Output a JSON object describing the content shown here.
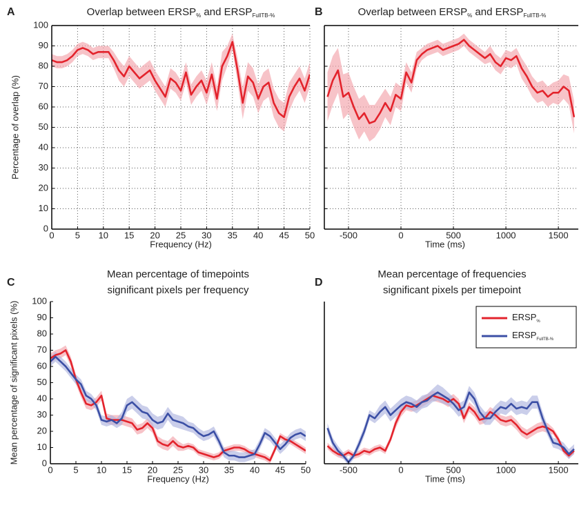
{
  "chart_data": [
    {
      "type": "line",
      "panel_label": "A",
      "title_parts": [
        {
          "text": "Overlap between ERSP",
          "sub": false
        },
        {
          "text": "%",
          "sub": true
        },
        {
          "text": " and ERSP",
          "sub": false
        },
        {
          "text": "FullTB-%",
          "sub": true
        }
      ],
      "xlabel": "Frequency (Hz)",
      "ylabel": "Percentage of overlap (%)",
      "xlim": [
        0,
        50
      ],
      "ylim": [
        0,
        100
      ],
      "xticks": [
        0,
        5,
        10,
        15,
        20,
        25,
        30,
        35,
        40,
        45,
        50
      ],
      "yticks": [
        0,
        10,
        20,
        30,
        40,
        50,
        60,
        70,
        80,
        90,
        100
      ],
      "show_yticklabels": true,
      "grid": true,
      "frame": true,
      "x": [
        0,
        1,
        2,
        3,
        4,
        5,
        6,
        7,
        8,
        9,
        10,
        11,
        12,
        13,
        14,
        15,
        16,
        17,
        18,
        19,
        20,
        21,
        22,
        23,
        24,
        25,
        26,
        27,
        28,
        29,
        30,
        31,
        32,
        33,
        34,
        35,
        36,
        37,
        38,
        39,
        40,
        41,
        42,
        43,
        44,
        45,
        46,
        47,
        48,
        49,
        50
      ],
      "series": [
        {
          "color": "#e3232c",
          "band_color": "#f2a3ab",
          "values": [
            83,
            82,
            82,
            83,
            85,
            88,
            89,
            88,
            86,
            87,
            87,
            87,
            83,
            78,
            75,
            80,
            77,
            74,
            76,
            78,
            73,
            69,
            65,
            74,
            72,
            68,
            77,
            66,
            70,
            73,
            67,
            76,
            64,
            80,
            85,
            92,
            78,
            62,
            75,
            72,
            64,
            70,
            72,
            62,
            57,
            55,
            65,
            70,
            74,
            68,
            76
          ],
          "errors": [
            3,
            3,
            3,
            3,
            3,
            3,
            3,
            3,
            3,
            3,
            3,
            3,
            4,
            5,
            5,
            5,
            5,
            5,
            5,
            5,
            5,
            5,
            5,
            5,
            5,
            5,
            5,
            5,
            5,
            5,
            6,
            6,
            6,
            7,
            5,
            4,
            6,
            8,
            7,
            7,
            7,
            7,
            7,
            7,
            7,
            7,
            7,
            6,
            6,
            6,
            6
          ]
        }
      ]
    },
    {
      "type": "line",
      "panel_label": "B",
      "title_parts": [
        {
          "text": "Overlap between ERSP",
          "sub": false
        },
        {
          "text": "%",
          "sub": true
        },
        {
          "text": " and ERSP",
          "sub": false
        },
        {
          "text": "FullTB-%",
          "sub": true
        }
      ],
      "xlabel": "Time (ms)",
      "xlim": [
        -730,
        1690
      ],
      "ylim": [
        0,
        100
      ],
      "xticks": [
        -500,
        0,
        500,
        1000,
        1500
      ],
      "yticks": [
        0,
        10,
        20,
        30,
        40,
        50,
        60,
        70,
        80,
        90,
        100
      ],
      "show_yticklabels": false,
      "grid": true,
      "frame": true,
      "x": [
        -700,
        -650,
        -600,
        -550,
        -500,
        -450,
        -400,
        -350,
        -300,
        -250,
        -200,
        -150,
        -100,
        -50,
        0,
        50,
        100,
        150,
        200,
        250,
        300,
        350,
        400,
        450,
        500,
        550,
        600,
        650,
        700,
        750,
        800,
        850,
        900,
        950,
        1000,
        1050,
        1100,
        1150,
        1200,
        1250,
        1300,
        1350,
        1400,
        1450,
        1500,
        1550,
        1600,
        1650
      ],
      "series": [
        {
          "color": "#e3232c",
          "band_color": "#f2a3ab",
          "values": [
            65,
            73,
            78,
            65,
            67,
            60,
            54,
            57,
            52,
            53,
            57,
            62,
            58,
            66,
            64,
            77,
            72,
            83,
            86,
            88,
            89,
            90,
            88,
            89,
            90,
            91,
            93,
            90,
            88,
            86,
            84,
            86,
            82,
            80,
            84,
            83,
            85,
            79,
            75,
            70,
            67,
            68,
            65,
            67,
            67,
            70,
            68,
            55
          ],
          "errors": [
            12,
            12,
            11,
            11,
            10,
            10,
            10,
            9,
            9,
            8,
            8,
            7,
            7,
            6,
            6,
            5,
            5,
            4,
            3,
            3,
            3,
            3,
            3,
            3,
            3,
            3,
            3,
            3,
            3,
            3,
            3,
            4,
            4,
            4,
            4,
            4,
            4,
            5,
            5,
            5,
            5,
            5,
            5,
            5,
            6,
            6,
            7,
            8
          ]
        }
      ]
    },
    {
      "type": "line",
      "panel_label": "C",
      "title_lines": [
        "Mean percentage of timepoints",
        "significant pixels per frequency"
      ],
      "xlabel": "Frequency (Hz)",
      "ylabel": "Mean percentage of significant pixels (%)",
      "xlim": [
        0,
        50
      ],
      "ylim": [
        0,
        100
      ],
      "xticks": [
        0,
        5,
        10,
        15,
        20,
        25,
        30,
        35,
        40,
        45,
        50
      ],
      "yticks": [
        0,
        10,
        20,
        30,
        40,
        50,
        60,
        70,
        80,
        90,
        100
      ],
      "show_yticklabels": true,
      "grid": false,
      "frame": false,
      "x": [
        0,
        1,
        2,
        3,
        4,
        5,
        6,
        7,
        8,
        9,
        10,
        11,
        12,
        13,
        14,
        15,
        16,
        17,
        18,
        19,
        20,
        21,
        22,
        23,
        24,
        25,
        26,
        27,
        28,
        29,
        30,
        31,
        32,
        33,
        34,
        35,
        36,
        37,
        38,
        39,
        40,
        41,
        42,
        43,
        44,
        45,
        46,
        47,
        48,
        49,
        50
      ],
      "series": [
        {
          "color": "#e3232c",
          "band_color": "#f2a3ab",
          "values": [
            65,
            67,
            68,
            70,
            63,
            52,
            44,
            37,
            36,
            38,
            42,
            28,
            27,
            27,
            27,
            26,
            25,
            21,
            22,
            25,
            22,
            14,
            12,
            11,
            14,
            11,
            10,
            11,
            10,
            7,
            6,
            5,
            4,
            5,
            8,
            9,
            10,
            10,
            9,
            7,
            6,
            5,
            4,
            2,
            9,
            17,
            15,
            14,
            12,
            10,
            8
          ],
          "errors": [
            3,
            3,
            3,
            3,
            3,
            3,
            3,
            3,
            3,
            3,
            3,
            3,
            3,
            3,
            3,
            3,
            3,
            3,
            3,
            3,
            3,
            3,
            3,
            3,
            3,
            3,
            2,
            2,
            2,
            2,
            2,
            2,
            2,
            2,
            2,
            2,
            2,
            2,
            2,
            2,
            2,
            2,
            2,
            2,
            2,
            2,
            2,
            2,
            2,
            2,
            2
          ]
        },
        {
          "color": "#3b4fa5",
          "band_color": "#aeb3df",
          "values": [
            63,
            66,
            63,
            60,
            56,
            52,
            49,
            42,
            40,
            36,
            27,
            26,
            27,
            25,
            28,
            36,
            38,
            35,
            32,
            31,
            27,
            25,
            26,
            31,
            27,
            26,
            25,
            23,
            22,
            19,
            17,
            18,
            20,
            14,
            7,
            5,
            5,
            4,
            4,
            5,
            6,
            12,
            19,
            17,
            13,
            9,
            12,
            16,
            18,
            19,
            17
          ],
          "errors": [
            3,
            3,
            3,
            3,
            3,
            3,
            3,
            3,
            3,
            3,
            3,
            3,
            3,
            3,
            4,
            4,
            4,
            4,
            4,
            4,
            4,
            4,
            4,
            4,
            4,
            4,
            4,
            3,
            3,
            3,
            3,
            3,
            3,
            3,
            3,
            3,
            3,
            3,
            3,
            3,
            3,
            3,
            3,
            3,
            3,
            3,
            3,
            3,
            3,
            3,
            3
          ]
        }
      ]
    },
    {
      "type": "line",
      "panel_label": "D",
      "title_lines": [
        "Mean percentage of frequencies",
        "significant pixels per timepoint"
      ],
      "xlabel": "Time (ms)",
      "xlim": [
        -730,
        1690
      ],
      "ylim": [
        0,
        100
      ],
      "xticks": [
        -500,
        0,
        500,
        1000,
        1500
      ],
      "grid": false,
      "frame": false,
      "legend": "upper right",
      "x": [
        -700,
        -650,
        -600,
        -550,
        -500,
        -450,
        -400,
        -350,
        -300,
        -250,
        -200,
        -150,
        -100,
        -50,
        0,
        50,
        100,
        150,
        200,
        250,
        300,
        350,
        400,
        450,
        500,
        550,
        600,
        650,
        700,
        750,
        800,
        850,
        900,
        950,
        1000,
        1050,
        1100,
        1150,
        1200,
        1250,
        1300,
        1350,
        1400,
        1450,
        1500,
        1550,
        1600,
        1650
      ],
      "series": [
        {
          "name": "ERSP",
          "name_sub": "%",
          "color": "#e3232c",
          "band_color": "#f2a3ab",
          "values": [
            11,
            8,
            6,
            5,
            7,
            5,
            6,
            8,
            7,
            9,
            10,
            8,
            15,
            25,
            32,
            36,
            35,
            36,
            38,
            40,
            42,
            41,
            40,
            38,
            40,
            37,
            28,
            35,
            32,
            27,
            28,
            32,
            30,
            27,
            26,
            27,
            24,
            20,
            18,
            20,
            22,
            23,
            22,
            20,
            15,
            8,
            5,
            8
          ],
          "errors": [
            2,
            2,
            2,
            2,
            2,
            2,
            2,
            2,
            2,
            2,
            2,
            2,
            2,
            3,
            3,
            3,
            3,
            3,
            3,
            3,
            3,
            3,
            3,
            3,
            3,
            3,
            3,
            3,
            3,
            3,
            3,
            3,
            3,
            3,
            3,
            3,
            3,
            3,
            3,
            3,
            3,
            3,
            3,
            2,
            2,
            2,
            2,
            2
          ]
        },
        {
          "name": "ERSP",
          "name_sub": "FullTB-%",
          "color": "#3b4fa5",
          "band_color": "#aeb3df",
          "values": [
            22,
            13,
            8,
            5,
            1,
            5,
            12,
            20,
            30,
            28,
            32,
            35,
            30,
            33,
            36,
            38,
            37,
            35,
            38,
            39,
            42,
            44,
            42,
            40,
            37,
            33,
            35,
            44,
            40,
            32,
            28,
            28,
            32,
            35,
            34,
            37,
            34,
            35,
            34,
            38,
            38,
            28,
            20,
            13,
            12,
            10,
            6,
            9
          ],
          "errors": [
            3,
            3,
            3,
            2,
            2,
            2,
            3,
            3,
            3,
            3,
            4,
            4,
            4,
            4,
            4,
            4,
            4,
            4,
            4,
            4,
            4,
            5,
            5,
            4,
            4,
            4,
            4,
            4,
            4,
            4,
            4,
            4,
            4,
            4,
            4,
            4,
            4,
            4,
            4,
            4,
            4,
            4,
            3,
            3,
            3,
            3,
            3,
            3
          ]
        }
      ]
    }
  ]
}
